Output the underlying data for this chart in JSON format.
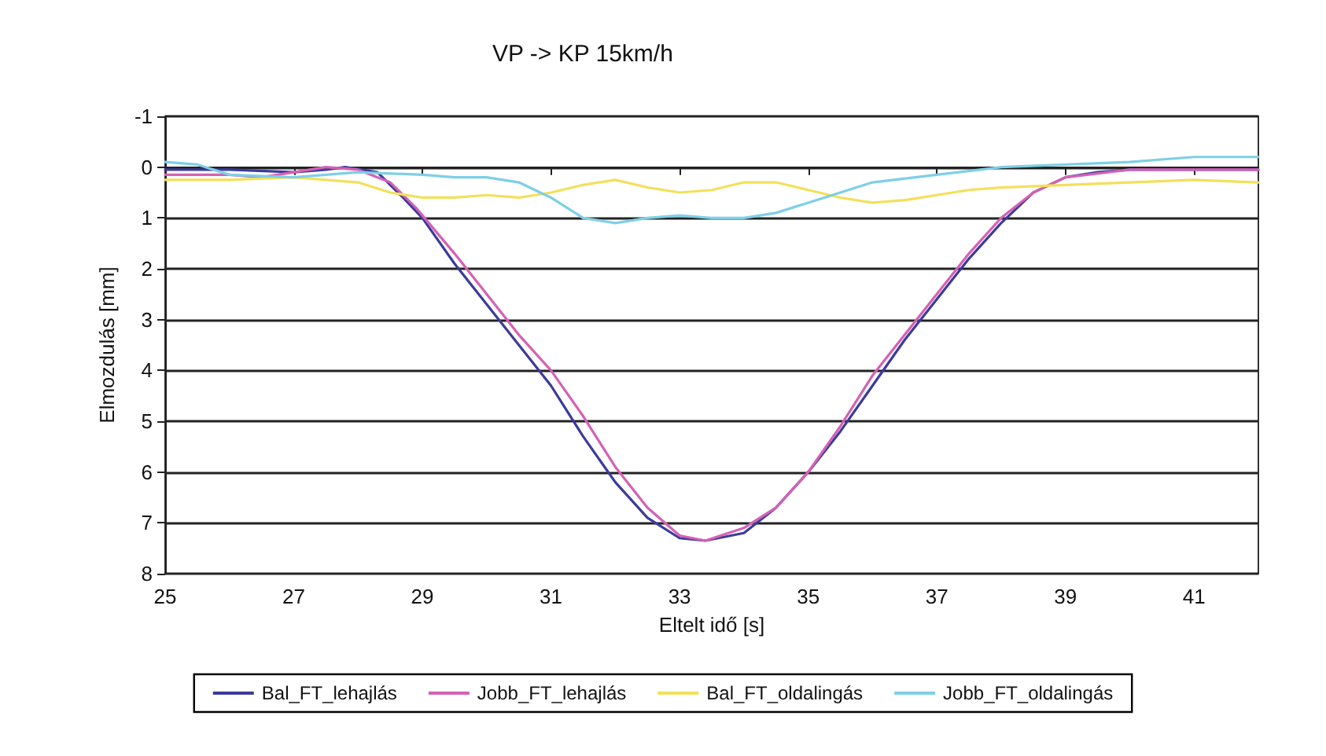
{
  "chart_data": {
    "type": "line",
    "title": "VP -> KP 15km/h",
    "xlabel": "Eltelt idő [s]",
    "ylabel": "Elmozdulás [mm]",
    "xlim": [
      25,
      42
    ],
    "xticks": [
      25,
      27,
      29,
      31,
      33,
      35,
      37,
      39,
      41
    ],
    "ylim": [
      8,
      -1
    ],
    "yticks": [
      -1,
      0,
      1,
      2,
      3,
      4,
      5,
      6,
      7,
      8
    ],
    "grid": "y",
    "legend": "bottom",
    "marker": "none",
    "line_style": "solid",
    "series": [
      {
        "name": "Bal_FT_lehajlás",
        "color": "#3b3b9c",
        "x": [
          25,
          26,
          27,
          27.5,
          27.8,
          28.3,
          28.7,
          29,
          29.5,
          30,
          30.5,
          31,
          31.5,
          32,
          32.5,
          33,
          33.4,
          34,
          34.5,
          35,
          35.5,
          36,
          36.5,
          37,
          37.5,
          38,
          38.5,
          39,
          39.5,
          40,
          41,
          42
        ],
        "values": [
          0.05,
          0.05,
          0.1,
          0.05,
          0,
          0.1,
          0.6,
          1.0,
          1.9,
          2.7,
          3.5,
          4.3,
          5.3,
          6.2,
          6.9,
          7.3,
          7.35,
          7.2,
          6.7,
          6.0,
          5.2,
          4.3,
          3.4,
          2.6,
          1.8,
          1.1,
          0.5,
          0.2,
          0.1,
          0.05,
          0.05,
          0.05
        ]
      },
      {
        "name": "Jobb_FT_lehajlás",
        "color": "#d462b4",
        "x": [
          25,
          26,
          26.5,
          27,
          27.5,
          28,
          28.5,
          28.9,
          29.5,
          30,
          30.5,
          31,
          31.5,
          32,
          32.5,
          33,
          33.4,
          34,
          34.5,
          35,
          35.5,
          36,
          36.5,
          37,
          37.5,
          38,
          38.5,
          39,
          40,
          41,
          42
        ],
        "values": [
          0.15,
          0.15,
          0.2,
          0.1,
          0,
          0.05,
          0.3,
          0.8,
          1.7,
          2.5,
          3.3,
          4.0,
          4.9,
          5.9,
          6.7,
          7.25,
          7.35,
          7.1,
          6.7,
          6.0,
          5.1,
          4.1,
          3.3,
          2.5,
          1.7,
          1.0,
          0.5,
          0.2,
          0.05,
          0.05,
          0.05
        ]
      },
      {
        "name": "Bal_FT_oldalingás",
        "color": "#f2e05a",
        "x": [
          25,
          26,
          27,
          28,
          28.5,
          29,
          29.5,
          30,
          30.5,
          31,
          31.5,
          32,
          32.5,
          33,
          33.5,
          34,
          34.5,
          35,
          35.5,
          36,
          36.5,
          37,
          37.5,
          38,
          39,
          40,
          41,
          42
        ],
        "values": [
          0.25,
          0.25,
          0.2,
          0.3,
          0.5,
          0.6,
          0.6,
          0.55,
          0.6,
          0.5,
          0.35,
          0.25,
          0.4,
          0.5,
          0.45,
          0.3,
          0.3,
          0.45,
          0.6,
          0.7,
          0.65,
          0.55,
          0.45,
          0.4,
          0.35,
          0.3,
          0.25,
          0.3
        ]
      },
      {
        "name": "Jobb_FT_oldalingás",
        "color": "#7ecfe6",
        "x": [
          25,
          25.5,
          26,
          27,
          28,
          29,
          29.5,
          30,
          30.5,
          31,
          31.5,
          32,
          32.5,
          33,
          33.5,
          34,
          34.5,
          35,
          35.5,
          36,
          37,
          38,
          39,
          40,
          41,
          42
        ],
        "values": [
          -0.1,
          -0.05,
          0.15,
          0.2,
          0.1,
          0.15,
          0.2,
          0.2,
          0.3,
          0.6,
          1.0,
          1.1,
          1.0,
          0.95,
          1.0,
          1.0,
          0.9,
          0.7,
          0.5,
          0.3,
          0.15,
          0,
          -0.05,
          -0.1,
          -0.2,
          -0.2
        ]
      }
    ]
  }
}
